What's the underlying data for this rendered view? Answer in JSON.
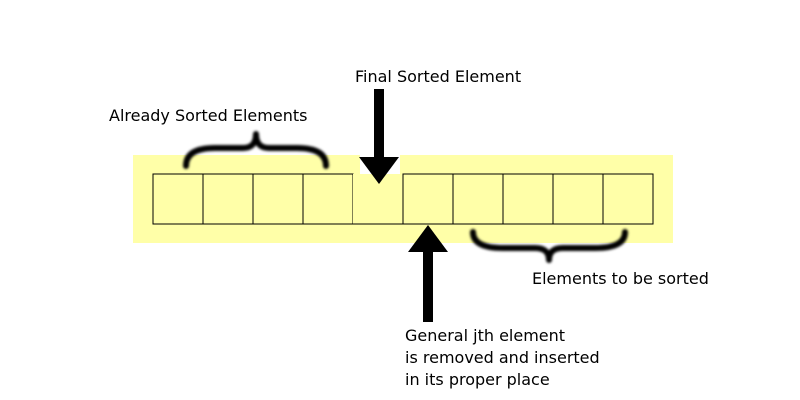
{
  "labels": {
    "final_sorted": "Final Sorted Element",
    "already_sorted": "Already Sorted Elements",
    "to_be_sorted": "Elements to be sorted",
    "general_jth": [
      "General jth element",
      "is removed and inserted",
      "in its proper place"
    ]
  },
  "array": {
    "cell_count": 10,
    "empty_slot_index": 4,
    "jth_index": 5
  },
  "colors": {
    "highlight": "#ffffa8",
    "cell_fill": "#ffffa8",
    "stroke": "#000000",
    "background": "#ffffff"
  }
}
